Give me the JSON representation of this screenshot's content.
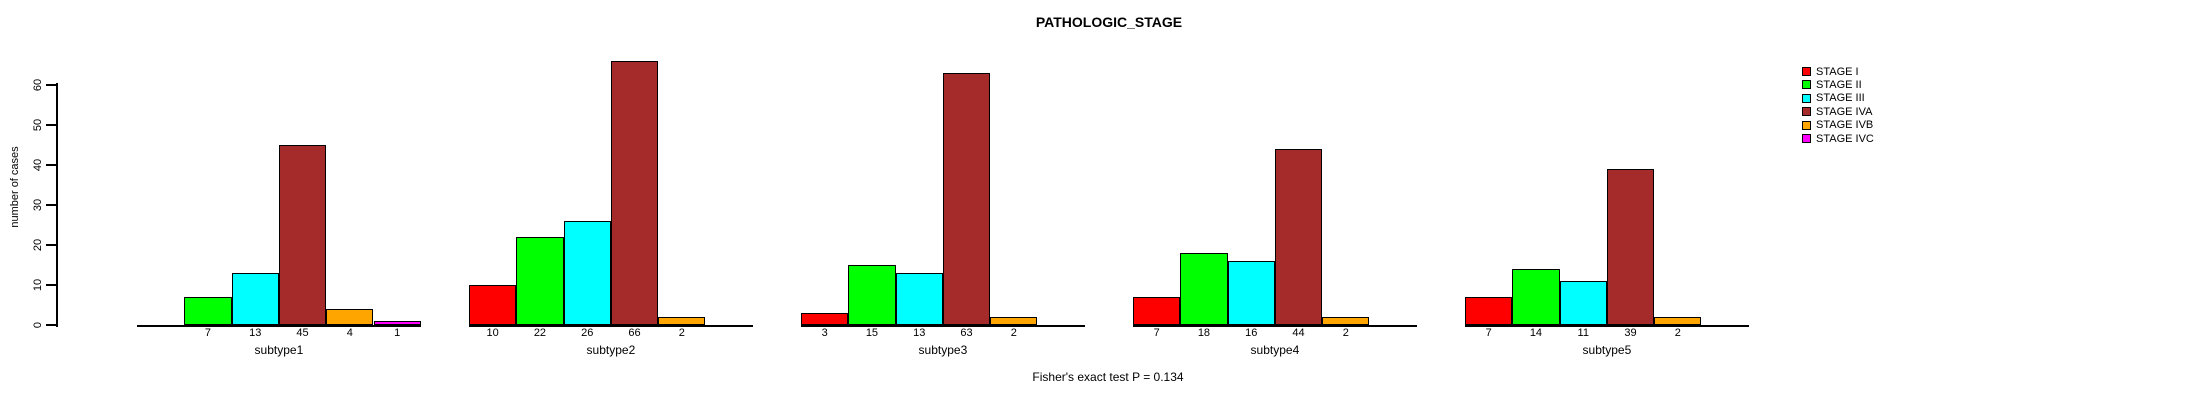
{
  "chart_data": {
    "type": "bar",
    "title": "PATHOLOGIC_STAGE",
    "ylabel": "number of cases",
    "xlabel": "",
    "yticks": [
      0,
      10,
      20,
      30,
      40,
      50,
      60
    ],
    "ylim": [
      0,
      68
    ],
    "grid": false,
    "legend_position": "right",
    "categories": [
      "subtype1",
      "subtype2",
      "subtype3",
      "subtype4",
      "subtype5"
    ],
    "series": [
      {
        "name": "STAGE I",
        "color": "#FF0000",
        "values": [
          0,
          10,
          3,
          7,
          7
        ]
      },
      {
        "name": "STAGE II",
        "color": "#00FF00",
        "values": [
          7,
          22,
          15,
          18,
          14
        ]
      },
      {
        "name": "STAGE III",
        "color": "#00FFFF",
        "values": [
          13,
          26,
          13,
          16,
          11
        ]
      },
      {
        "name": "STAGE IVA",
        "color": "#A52A2A",
        "values": [
          45,
          66,
          63,
          44,
          39
        ]
      },
      {
        "name": "STAGE IVB",
        "color": "#FFA500",
        "values": [
          4,
          2,
          2,
          2,
          2
        ]
      },
      {
        "name": "STAGE IVC",
        "color": "#FF00FF",
        "values": [
          1,
          0,
          0,
          0,
          0
        ]
      }
    ],
    "bar_count_labels": "counts shown under each nonzero bar",
    "footer": "Fisher's exact test P = 0.134"
  }
}
